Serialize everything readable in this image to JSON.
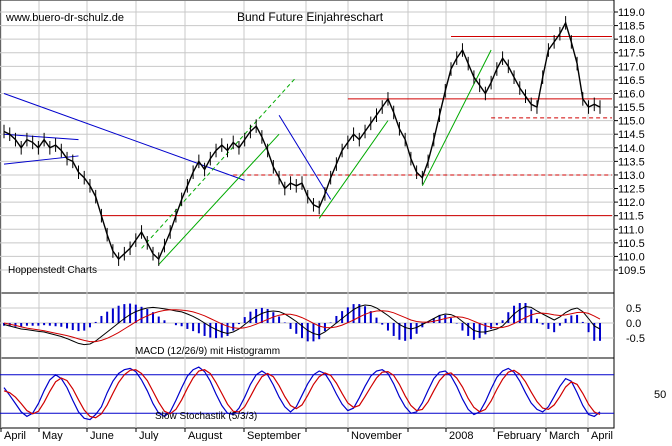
{
  "header": {
    "site": "www.buero-dr-schulz.de",
    "title": "Bund Future Einjahreschart"
  },
  "footer": {
    "source": "Hoppenstedt Charts"
  },
  "chart_data": [
    {
      "type": "candlestick",
      "title": "Bund Future Einjahreschart",
      "ylim": [
        109.5,
        119.0
      ],
      "yticks": [
        "119.0",
        "118.5",
        "118.0",
        "117.5",
        "117.0",
        "116.5",
        "116.0",
        "115.5",
        "115.0",
        "114.5",
        "114.0",
        "113.5",
        "113.0",
        "112.5",
        "112.0",
        "111.5",
        "111.0",
        "110.5",
        "110.0",
        "109.5"
      ],
      "xticks": [
        "April",
        "May",
        "June",
        "July",
        "August",
        "September",
        "",
        "November",
        "",
        "2008",
        "February",
        "March",
        "April"
      ],
      "grid": true,
      "close_series": [
        114.6,
        114.5,
        114.3,
        114.0,
        114.3,
        114.2,
        114.0,
        114.3,
        114.0,
        114.1,
        113.9,
        113.6,
        113.5,
        113.1,
        112.9,
        112.6,
        112.2,
        111.5,
        110.8,
        110.2,
        109.9,
        110.1,
        110.3,
        110.6,
        110.9,
        110.5,
        110.1,
        109.9,
        110.4,
        110.9,
        111.5,
        112.1,
        112.6,
        113.1,
        113.5,
        113.2,
        113.6,
        113.9,
        114.1,
        113.9,
        114.2,
        114.0,
        114.3,
        114.6,
        114.8,
        114.4,
        113.9,
        113.3,
        112.9,
        112.5,
        112.7,
        112.6,
        112.7,
        112.2,
        111.9,
        111.8,
        112.3,
        112.9,
        113.4,
        113.9,
        114.2,
        114.5,
        114.3,
        114.6,
        114.9,
        115.2,
        115.5,
        115.8,
        115.3,
        114.7,
        114.3,
        113.6,
        113.1,
        112.9,
        113.5,
        114.3,
        115.2,
        116.1,
        116.9,
        117.3,
        117.6,
        117.1,
        116.6,
        116.3,
        116.0,
        116.4,
        116.9,
        117.3,
        117.0,
        116.6,
        116.2,
        115.9,
        115.6,
        115.5,
        116.6,
        117.6,
        117.9,
        118.2,
        118.6,
        117.9,
        117.1,
        115.8,
        115.5,
        115.6,
        115.5
      ],
      "close_dates": [
        "2007-04-02",
        "2007-04-09",
        "2007-04-16",
        "2007-04-23",
        "2007-04-30",
        "2007-05-07",
        "2007-05-14",
        "2007-05-21",
        "2007-05-28",
        "2007-06-04",
        "2007-06-11",
        "2007-06-18",
        "2007-06-25",
        "2007-07-02",
        "2007-07-09",
        "2007-07-16",
        "2007-07-23",
        "2007-07-30",
        "2007-08-06",
        "2007-08-13",
        "2007-08-20",
        "2007-08-27",
        "2007-09-03",
        "2007-09-10",
        "2007-09-17",
        "2007-09-24",
        "2007-10-01",
        "2007-10-08",
        "2007-10-15",
        "2007-10-22",
        "2007-10-29",
        "2007-11-05",
        "2007-11-12",
        "2007-11-19",
        "2007-11-26",
        "2007-12-03",
        "2007-12-10",
        "2007-12-17",
        "2007-12-24",
        "2007-12-31",
        "2008-01-07",
        "2008-01-14",
        "2008-01-21",
        "2008-01-28",
        "2008-02-04",
        "2008-02-11",
        "2008-02-18",
        "2008-02-25",
        "2008-03-03",
        "2008-03-10",
        "2008-03-17",
        "2008-03-24",
        "2008-03-31",
        "2008-04-07",
        "2008-04-14",
        "2008-04-21",
        "2008-04-28",
        "2008-05-05",
        "2008-05-12",
        "2008-05-19",
        "2008-05-26",
        "2008-06-02",
        "2008-06-09",
        "2008-06-16",
        "2008-06-23",
        "2008-06-30",
        "2008-07-07",
        "2008-07-14",
        "2008-07-21",
        "2008-07-28",
        "2008-08-04",
        "2008-08-11",
        "2008-08-18",
        "2008-08-25",
        "2008-09-01",
        "2008-09-08",
        "2008-09-15",
        "2008-09-22",
        "2008-09-29",
        "2008-10-06",
        "2008-10-13",
        "2008-10-20",
        "2008-10-27",
        "2008-11-03",
        "2008-11-10",
        "2008-11-17",
        "2008-11-24",
        "2008-12-01",
        "2008-12-08",
        "2008-12-15",
        "2008-12-22",
        "2008-12-29",
        "2009-01-05",
        "2009-01-12",
        "2009-01-19",
        "2009-01-26",
        "2009-02-02",
        "2009-02-09",
        "2009-02-16",
        "2009-02-23",
        "2009-03-02",
        "2009-03-09",
        "2009-03-16",
        "2009-03-23",
        "2009-03-30"
      ],
      "horizontal_levels": [
        {
          "value": 118.1,
          "style": "solid",
          "color": "#d00000"
        },
        {
          "value": 115.8,
          "style": "solid",
          "color": "#d00000"
        },
        {
          "value": 115.1,
          "style": "dashed",
          "color": "#d00000"
        },
        {
          "value": 113.0,
          "style": "dashed",
          "color": "#d00000"
        },
        {
          "value": 111.5,
          "style": "solid",
          "color": "#d00000"
        }
      ],
      "colors": {
        "price": "#000000",
        "support": "#d00000",
        "trend_up": "#00aa00",
        "trend_down": "#0000cc",
        "grid": "#c8c8c8"
      }
    },
    {
      "type": "line+bar",
      "label": "MACD (12/26/9) mit Histogramm",
      "ylim": [
        -1.1,
        0.9
      ],
      "yticks": [
        "0.5",
        "0.0",
        "-0.5"
      ],
      "macd_series": [
        -0.05,
        -0.1,
        -0.15,
        -0.2,
        -0.22,
        -0.25,
        -0.28,
        -0.3,
        -0.35,
        -0.4,
        -0.45,
        -0.52,
        -0.6,
        -0.68,
        -0.72,
        -0.7,
        -0.6,
        -0.45,
        -0.3,
        -0.15,
        0.0,
        0.15,
        0.28,
        0.38,
        0.45,
        0.5,
        0.52,
        0.5,
        0.47,
        0.44,
        0.4,
        0.37,
        0.3,
        0.22,
        0.12,
        0.0,
        -0.12,
        -0.22,
        -0.3,
        -0.35,
        -0.3,
        -0.2,
        -0.05,
        0.1,
        0.22,
        0.32,
        0.38,
        0.4,
        0.38,
        0.3,
        0.18,
        0.05,
        -0.1,
        -0.25,
        -0.35,
        -0.4,
        -0.3,
        -0.15,
        0.0,
        0.15,
        0.3,
        0.45,
        0.55,
        0.6,
        0.58,
        0.5,
        0.38,
        0.25,
        0.1,
        -0.05,
        -0.15,
        -0.2,
        -0.15,
        -0.05,
        0.05,
        0.15,
        0.25,
        0.3,
        0.28,
        0.2,
        0.05,
        -0.1,
        -0.25,
        -0.3,
        -0.3,
        -0.25,
        -0.2,
        -0.1,
        0.1,
        0.3,
        0.45,
        0.55,
        0.52,
        0.4,
        0.3,
        0.2,
        0.1,
        0.2,
        0.35,
        0.45,
        0.5,
        0.38,
        0.15,
        -0.1,
        -0.2
      ],
      "signal_series": [
        0.0,
        -0.04,
        -0.08,
        -0.13,
        -0.17,
        -0.2,
        -0.23,
        -0.26,
        -0.3,
        -0.34,
        -0.38,
        -0.42,
        -0.47,
        -0.53,
        -0.58,
        -0.62,
        -0.62,
        -0.58,
        -0.51,
        -0.42,
        -0.32,
        -0.2,
        -0.08,
        0.04,
        0.15,
        0.24,
        0.32,
        0.38,
        0.42,
        0.44,
        0.44,
        0.43,
        0.41,
        0.37,
        0.31,
        0.24,
        0.15,
        0.06,
        -0.03,
        -0.11,
        -0.16,
        -0.18,
        -0.16,
        -0.11,
        -0.04,
        0.04,
        0.12,
        0.2,
        0.26,
        0.29,
        0.29,
        0.25,
        0.18,
        0.09,
        -0.01,
        -0.1,
        -0.15,
        -0.16,
        -0.13,
        -0.07,
        0.01,
        0.1,
        0.2,
        0.29,
        0.36,
        0.4,
        0.41,
        0.39,
        0.34,
        0.26,
        0.18,
        0.1,
        0.05,
        0.03,
        0.03,
        0.06,
        0.1,
        0.15,
        0.19,
        0.21,
        0.19,
        0.14,
        0.06,
        -0.02,
        -0.09,
        -0.14,
        -0.16,
        -0.15,
        -0.1,
        -0.02,
        0.08,
        0.18,
        0.27,
        0.32,
        0.33,
        0.31,
        0.27,
        0.25,
        0.27,
        0.31,
        0.35,
        0.36,
        0.32,
        0.23,
        0.13
      ],
      "colors": {
        "macd": "#000000",
        "signal": "#d00000",
        "histogram": "#0000cc"
      }
    },
    {
      "type": "line",
      "label": "Slow Stochastik (5/3/3)",
      "ylim": [
        0,
        100
      ],
      "yticks": [
        "50"
      ],
      "k_series": [
        60,
        48,
        35,
        22,
        15,
        20,
        35,
        55,
        72,
        80,
        74,
        60,
        40,
        22,
        12,
        10,
        18,
        30,
        52,
        70,
        82,
        88,
        90,
        85,
        72,
        55,
        35,
        20,
        15,
        22,
        40,
        60,
        78,
        88,
        92,
        85,
        70,
        50,
        32,
        20,
        18,
        28,
        45,
        65,
        80,
        86,
        80,
        64,
        45,
        30,
        22,
        30,
        48,
        66,
        80,
        86,
        82,
        68,
        50,
        34,
        24,
        28,
        44,
        62,
        78,
        86,
        88,
        82,
        66,
        46,
        30,
        20,
        22,
        36,
        56,
        74,
        84,
        86,
        78,
        62,
        42,
        26,
        18,
        22,
        38,
        58,
        76,
        86,
        90,
        84,
        70,
        52,
        36,
        26,
        22,
        30,
        46,
        62,
        74,
        70,
        52,
        32,
        18,
        15,
        22
      ],
      "d_series": [
        55,
        52,
        45,
        35,
        24,
        19,
        23,
        37,
        54,
        69,
        75,
        71,
        58,
        41,
        25,
        15,
        13,
        19,
        33,
        51,
        68,
        80,
        87,
        88,
        82,
        71,
        54,
        37,
        23,
        19,
        26,
        41,
        59,
        75,
        86,
        88,
        82,
        68,
        51,
        34,
        23,
        22,
        30,
        46,
        63,
        77,
        82,
        77,
        63,
        46,
        32,
        27,
        33,
        48,
        65,
        77,
        83,
        79,
        67,
        51,
        36,
        29,
        32,
        46,
        61,
        75,
        84,
        85,
        79,
        65,
        47,
        32,
        24,
        26,
        38,
        55,
        71,
        81,
        83,
        75,
        61,
        43,
        29,
        22,
        26,
        39,
        57,
        73,
        84,
        87,
        81,
        69,
        53,
        38,
        28,
        26,
        33,
        46,
        61,
        69,
        65,
        51,
        34,
        22,
        18
      ],
      "colors": {
        "k": "#0000cc",
        "d": "#d00000",
        "levels": "#0000cc"
      }
    }
  ]
}
